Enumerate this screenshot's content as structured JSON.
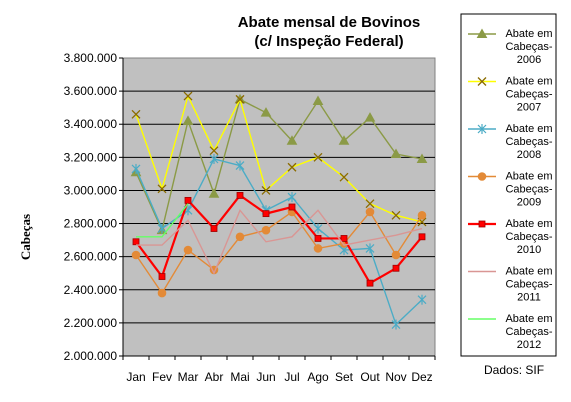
{
  "chart_data": {
    "type": "line",
    "title_lines": [
      "Abate mensal de Bovinos",
      "(c/ Inspeção Federal)"
    ],
    "xlabel": "",
    "ylabel": "Cabeças",
    "source": "Dados: SIF",
    "categories": [
      "Jan",
      "Fev",
      "Mar",
      "Abr",
      "Mai",
      "Jun",
      "Jul",
      "Ago",
      "Set",
      "Out",
      "Nov",
      "Dez"
    ],
    "ylim": [
      2000000,
      3800000
    ],
    "yticks": [
      2000000,
      2200000,
      2400000,
      2600000,
      2800000,
      3000000,
      3200000,
      3400000,
      3600000,
      3800000
    ],
    "ytick_labels": [
      "2.000.000",
      "2.200.000",
      "2.400.000",
      "2.600.000",
      "2.800.000",
      "3.000.000",
      "3.200.000",
      "3.400.000",
      "3.600.000",
      "3.800.000"
    ],
    "grid": true,
    "plot_background": "#c0c0c0",
    "legend_position": "right",
    "series": [
      {
        "name": "Abate em Cabeças-2006",
        "legend_lines": [
          "Abate em",
          "Cabeças-",
          "2006"
        ],
        "color": "#8b9a46",
        "marker": "triangle",
        "values": [
          3110000,
          2760000,
          3420000,
          2980000,
          3550000,
          3470000,
          3300000,
          3540000,
          3300000,
          3440000,
          3220000,
          3190000
        ]
      },
      {
        "name": "Abate em Cabeças-2007",
        "legend_lines": [
          "Abate em",
          "Cabeças-",
          "2007"
        ],
        "color": "#ffff00",
        "marker": "x",
        "values": [
          3460000,
          3010000,
          3570000,
          3240000,
          3550000,
          3000000,
          3140000,
          3200000,
          3080000,
          2920000,
          2850000,
          2810000
        ]
      },
      {
        "name": "Abate em Cabeças-2008",
        "legend_lines": [
          "Abate em",
          "Cabeças-",
          "2008"
        ],
        "color": "#4bacc6",
        "marker": "star",
        "values": [
          3130000,
          2770000,
          2880000,
          3190000,
          3150000,
          2880000,
          2960000,
          2770000,
          2640000,
          2650000,
          2190000,
          2340000
        ]
      },
      {
        "name": "Abate em Cabeças-2009",
        "legend_lines": [
          "Abate em",
          "Cabeças-",
          "2009"
        ],
        "color": "#e38a37",
        "marker": "circle",
        "values": [
          2610000,
          2380000,
          2640000,
          2520000,
          2720000,
          2760000,
          2870000,
          2650000,
          2680000,
          2870000,
          2610000,
          2850000
        ]
      },
      {
        "name": "Abate em Cabeças-2010",
        "legend_lines": [
          "Abate em",
          "Cabeças-",
          "2010"
        ],
        "color": "#ff0000",
        "marker": "square",
        "values": [
          2690000,
          2480000,
          2940000,
          2770000,
          2970000,
          2860000,
          2900000,
          2710000,
          2710000,
          2440000,
          2530000,
          2720000
        ]
      },
      {
        "name": "Abate em Cabeças-2011",
        "legend_lines": [
          "Abate em",
          "Cabeças-",
          "2011"
        ],
        "color": "#d99694",
        "marker": "none",
        "values": [
          2670000,
          2670000,
          2820000,
          2500000,
          2880000,
          2690000,
          2720000,
          2880000,
          2670000,
          2700000,
          2730000,
          2770000
        ]
      },
      {
        "name": "Abate em Cabeças-2012",
        "legend_lines": [
          "Abate em",
          "Cabeças-",
          "2012"
        ],
        "color": "#66ff66",
        "marker": "none",
        "values": [
          2720000,
          2720000,
          2920000,
          null,
          null,
          null,
          null,
          null,
          null,
          null,
          null,
          null
        ]
      }
    ]
  }
}
